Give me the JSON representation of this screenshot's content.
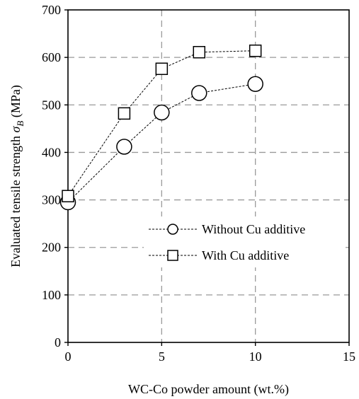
{
  "chart_data": {
    "type": "line",
    "xlabel": "WC-Co powder amount (wt.%)",
    "ylabel_main": "Evaluated tensile strength ",
    "ylabel_symbol": "σ",
    "ylabel_subscript": "B",
    "ylabel_unit": " (MPa)",
    "xlim": [
      0,
      15
    ],
    "ylim": [
      0,
      700
    ],
    "xticks": [
      0,
      5,
      10,
      15
    ],
    "yticks": [
      0,
      100,
      200,
      300,
      400,
      500,
      600,
      700
    ],
    "xtick_labels": [
      "0",
      "5",
      "10",
      "15"
    ],
    "ytick_labels": [
      "0",
      "100",
      "200",
      "300",
      "400",
      "500",
      "600",
      "700"
    ],
    "grid": true,
    "legend_position": "lower-right",
    "series": [
      {
        "name": "Without Cu additive",
        "marker": "circle",
        "x": [
          0,
          3,
          5,
          7,
          10
        ],
        "y": [
          295,
          412,
          484,
          525,
          544
        ]
      },
      {
        "name": "With Cu additive",
        "marker": "square",
        "x": [
          0,
          3,
          5,
          7,
          10
        ],
        "y": [
          308,
          482,
          576,
          611,
          614
        ]
      }
    ]
  }
}
